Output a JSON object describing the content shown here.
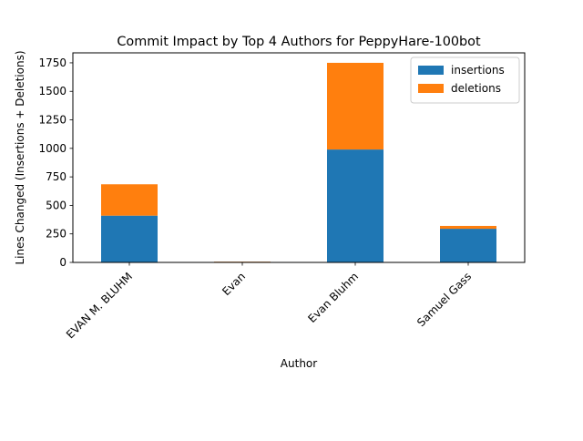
{
  "chart_data": {
    "type": "bar",
    "stacked": true,
    "title": "Commit Impact by Top 4 Authors for PeppyHare-100bot",
    "xlabel": "Author",
    "ylabel": "Lines Changed (Insertions + Deletions)",
    "categories": [
      "EVAN M. BLUHM",
      "Evan",
      "Evan Bluhm",
      "Samuel Gass"
    ],
    "series": [
      {
        "name": "insertions",
        "color": "#1f77b4",
        "values": [
          410,
          5,
          990,
          295
        ]
      },
      {
        "name": "deletions",
        "color": "#ff7f0e",
        "values": [
          275,
          2,
          760,
          25
        ]
      }
    ],
    "ylim": [
      0,
      1837.5
    ],
    "yticks": [
      0,
      250,
      500,
      750,
      1000,
      1250,
      1500,
      1750
    ],
    "legend_position": "top-right",
    "grid": false
  }
}
